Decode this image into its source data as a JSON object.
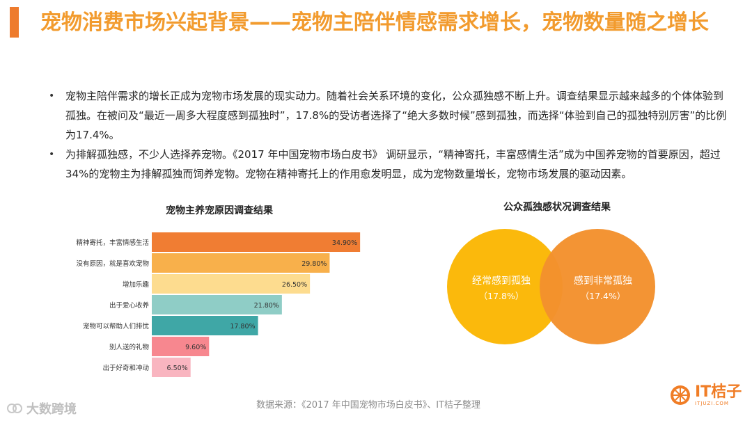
{
  "slide": {
    "title": "宠物消费市场兴起背景——宠物主陪伴情感需求增长，宠物数量随之增长",
    "bullets": [
      "宠物主陪伴需求的增长正成为宠物市场发展的现实动力。随着社会关系环境的变化，公众孤独感不断上升。调查结果显示越来越多的个体体验到孤独。在被问及“最近一周多大程度感到孤独时”，17.8%的受访者选择了“绝大多数时候”感到孤独，而选择“体验到自己的孤独特别厉害”的比例为17.4%。",
      "为排解孤独感，不少人选择养宠物。《2017 年中国宠物市场白皮书》 调研显示，“精神寄托，丰富感情生活”成为中国养宠物的首要原因，超过34%的宠物主为排解孤独而饲养宠物。宠物在精神寄托上的作用愈发明显，成为宠物数量增长，宠物市场发展的驱动因素。"
    ],
    "bullet_symbol": "•",
    "source": "数据来源：《2017 年中国宠物市场白皮书》、IT桔子整理",
    "watermark": "大数跨境",
    "logo": {
      "text": "IT桔子",
      "sub": "ITJUZI.COM"
    }
  },
  "chart_data": [
    {
      "type": "bar",
      "orientation": "horizontal",
      "title": "宠物主养宠原因调查结果",
      "categories": [
        "精神寄托，丰富情感生活",
        "没有原因，就是喜欢宠物",
        "增加乐趣",
        "出于爱心收养",
        "宠物可以帮助人们排忧",
        "别人送的礼物",
        "出于好奇和冲动"
      ],
      "values": [
        34.9,
        29.8,
        26.5,
        21.8,
        17.8,
        9.6,
        6.5
      ],
      "value_labels": [
        "34.90%",
        "29.80%",
        "26.50%",
        "21.80%",
        "17.80%",
        "9.60%",
        "6.50%"
      ],
      "colors": [
        "#f07d33",
        "#f8b04b",
        "#fddc8f",
        "#8fcdc6",
        "#3fa7a6",
        "#f7878f",
        "#f9b5c0"
      ],
      "xlim": [
        0,
        35
      ],
      "grid": false,
      "legend": "none"
    },
    {
      "type": "venn",
      "title": "公众孤独感状况调查结果",
      "sets": [
        {
          "label": "经常感到孤独",
          "value_label": "（17.8%）",
          "value": 17.8,
          "color": "#fbb90c"
        },
        {
          "label": "感到非常孤独",
          "value_label": "（17.4%）",
          "value": 17.4,
          "color": "#f3912d"
        }
      ]
    }
  ]
}
